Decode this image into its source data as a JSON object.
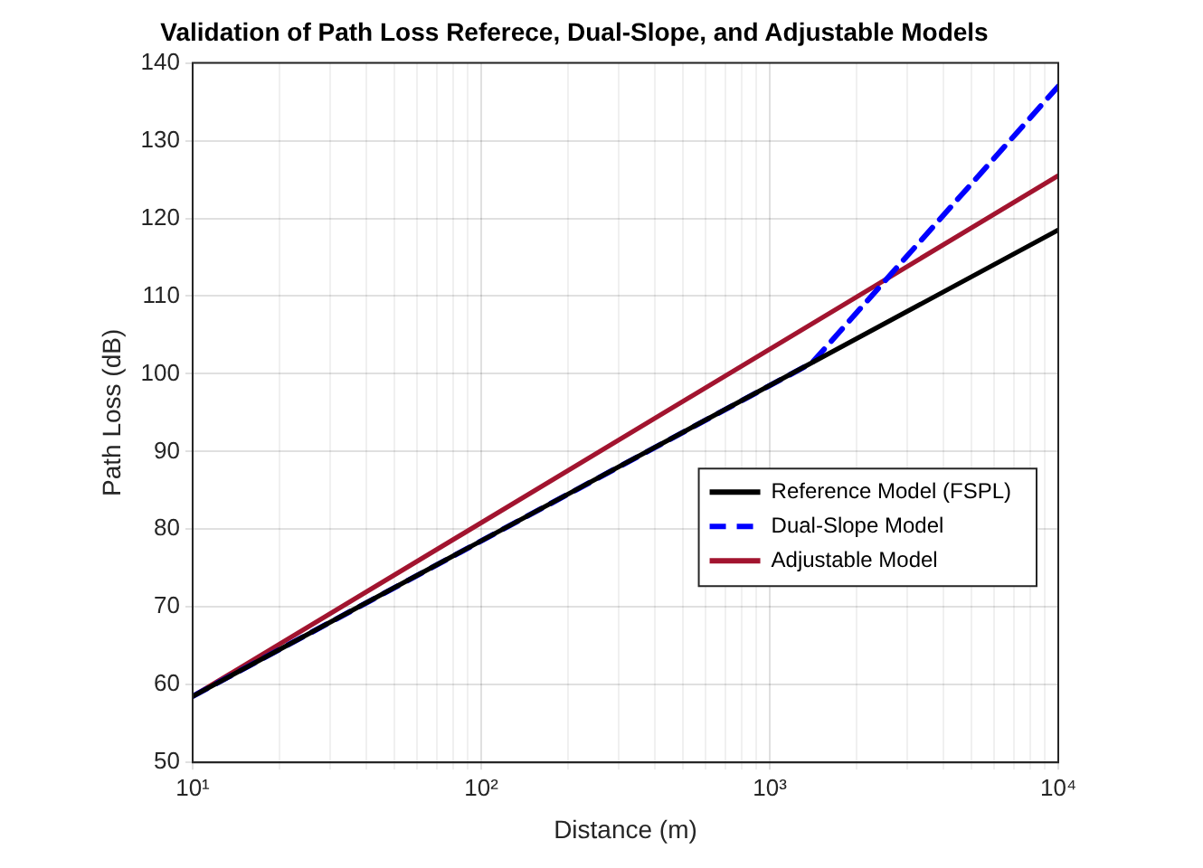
{
  "chart_data": {
    "type": "line",
    "title": "Validation of Path Loss Referece, Dual-Slope, and Adjustable Models",
    "xlabel": "Distance (m)",
    "ylabel": "Path Loss (dB)",
    "log": "x",
    "xlim": [
      10,
      10000
    ],
    "xticks": [
      {
        "value": 10,
        "label": "10¹"
      },
      {
        "value": 20,
        "label": null
      },
      {
        "value": 30,
        "label": null
      },
      {
        "value": 40,
        "label": null
      },
      {
        "value": 50,
        "label": null
      },
      {
        "value": 60,
        "label": null
      },
      {
        "value": 70,
        "label": null
      },
      {
        "value": 80,
        "label": null
      },
      {
        "value": 90,
        "label": null
      },
      {
        "value": 100,
        "label": "10²"
      },
      {
        "value": 200,
        "label": null
      },
      {
        "value": 300,
        "label": null
      },
      {
        "value": 400,
        "label": null
      },
      {
        "value": 500,
        "label": null
      },
      {
        "value": 600,
        "label": null
      },
      {
        "value": 700,
        "label": null
      },
      {
        "value": 800,
        "label": null
      },
      {
        "value": 900,
        "label": null
      },
      {
        "value": 1000,
        "label": "10³"
      },
      {
        "value": 2000,
        "label": null
      },
      {
        "value": 3000,
        "label": null
      },
      {
        "value": 4000,
        "label": null
      },
      {
        "value": 5000,
        "label": null
      },
      {
        "value": 6000,
        "label": null
      },
      {
        "value": 7000,
        "label": null
      },
      {
        "value": 8000,
        "label": null
      },
      {
        "value": 9000,
        "label": null
      },
      {
        "value": 10000,
        "label": "10⁴"
      }
    ],
    "ylim": [
      50,
      140
    ],
    "yticks": [
      50,
      60,
      70,
      80,
      90,
      100,
      110,
      120,
      130,
      140
    ],
    "grid": true,
    "legend": "bottom right",
    "series": [
      {
        "name": "Reference Model (FSPL)",
        "color": "#000000",
        "line_style": "solid",
        "x": [
          10,
          10000
        ],
        "values": [
          58.5,
          118.5
        ]
      },
      {
        "name": "Dual-Slope Model",
        "color": "#0000ff",
        "line_style": "dashed",
        "x": [
          10,
          1400,
          10000
        ],
        "values": [
          58.5,
          101.4,
          137
        ]
      },
      {
        "name": "Adjustable Model",
        "color": "#a2142f",
        "line_style": "solid",
        "x": [
          10,
          10000
        ],
        "values": [
          58.5,
          125.5
        ]
      }
    ]
  }
}
